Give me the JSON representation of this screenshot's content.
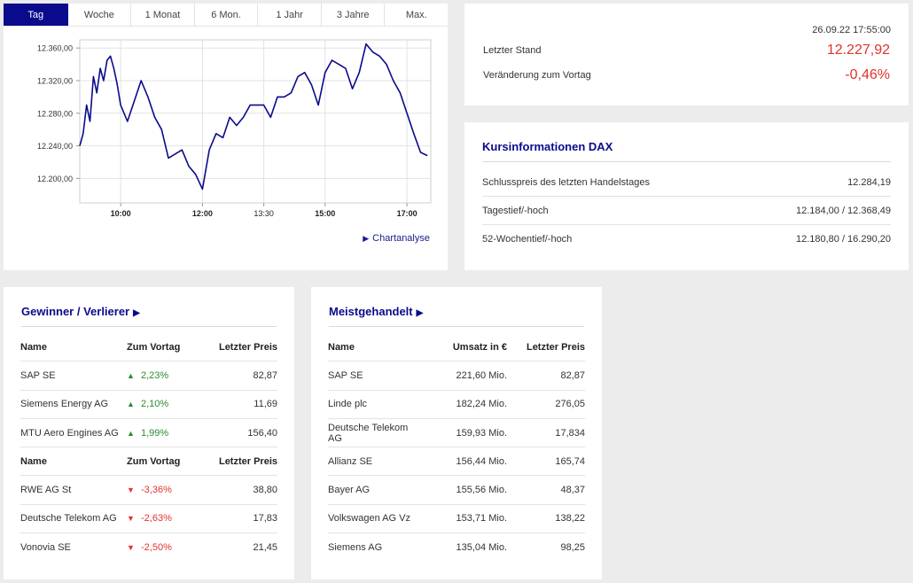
{
  "tabs": [
    "Tag",
    "Woche",
    "1 Monat",
    "6 Mon.",
    "1 Jahr",
    "3 Jahre",
    "Max."
  ],
  "active_tab": "Tag",
  "chart_link": "Chartanalyse",
  "quote": {
    "timestamp": "26.09.22 17:55:00",
    "last_label": "Letzter Stand",
    "last_value": "12.227,92",
    "change_label": "Veränderung zum Vortag",
    "change_value": "-0,46%"
  },
  "info": {
    "title": "Kursinformationen DAX",
    "rows": [
      {
        "label": "Schlusspreis des letzten Handelstages",
        "value": "12.284,19"
      },
      {
        "label": "Tagestief/-hoch",
        "value": "12.184,00 / 12.368,49"
      },
      {
        "label": "52-Wochentief/-hoch",
        "value": "12.180,80 / 16.290,20"
      }
    ]
  },
  "gainers_losers": {
    "title": "Gewinner / Verlierer",
    "headers": [
      "Name",
      "Zum Vortag",
      "Letzter Preis"
    ],
    "gainers": [
      {
        "name": "SAP SE",
        "change": "2,23%",
        "price": "82,87"
      },
      {
        "name": "Siemens Energy AG",
        "change": "2,10%",
        "price": "11,69"
      },
      {
        "name": "MTU Aero Engines AG",
        "change": "1,99%",
        "price": "156,40"
      }
    ],
    "losers": [
      {
        "name": "RWE AG St",
        "change": "-3,36%",
        "price": "38,80"
      },
      {
        "name": "Deutsche Telekom AG",
        "change": "-2,63%",
        "price": "17,83"
      },
      {
        "name": "Vonovia SE",
        "change": "-2,50%",
        "price": "21,45"
      }
    ]
  },
  "most_traded": {
    "title": "Meistgehandelt",
    "headers": [
      "Name",
      "Umsatz in €",
      "Letzter Preis"
    ],
    "rows": [
      {
        "name": "SAP SE",
        "volume": "221,60 Mio.",
        "price": "82,87"
      },
      {
        "name": "Linde plc",
        "volume": "182,24 Mio.",
        "price": "276,05"
      },
      {
        "name": "Deutsche Telekom AG",
        "volume": "159,93 Mio.",
        "price": "17,834"
      },
      {
        "name": "Allianz SE",
        "volume": "156,44 Mio.",
        "price": "165,74"
      },
      {
        "name": "Bayer AG",
        "volume": "155,56 Mio.",
        "price": "48,37"
      },
      {
        "name": "Volkswagen AG Vz",
        "volume": "153,71 Mio.",
        "price": "138,22"
      },
      {
        "name": "Siemens AG",
        "volume": "135,04 Mio.",
        "price": "98,25"
      }
    ]
  },
  "colors": {
    "accent": "#0a0a8c",
    "up": "#2e8b2e",
    "down": "#e1322b"
  },
  "chart_data": {
    "type": "line",
    "y_tick_labels": [
      "12.360,00",
      "12.320,00",
      "12.280,00",
      "12.240,00",
      "12.200,00"
    ],
    "y_ticks": [
      12360,
      12320,
      12280,
      12240,
      12200
    ],
    "x_tick_labels": [
      "10:00",
      "12:00",
      "13:30",
      "15:00",
      "17:00"
    ],
    "x_ticks": [
      "10:00",
      "12:00",
      "13:30",
      "15:00",
      "17:00"
    ],
    "ylim": [
      12170,
      12370
    ],
    "xlim": [
      "09:00",
      "17:35"
    ],
    "grid": true,
    "series": [
      {
        "x": [
          "09:00",
          "09:05",
          "09:10",
          "09:15",
          "09:20",
          "09:25",
          "09:30",
          "09:35",
          "09:40",
          "09:45",
          "09:50",
          "09:55",
          "10:00",
          "10:10",
          "10:20",
          "10:30",
          "10:40",
          "10:50",
          "11:00",
          "11:10",
          "11:20",
          "11:30",
          "11:40",
          "11:50",
          "12:00",
          "12:10",
          "12:20",
          "12:30",
          "12:40",
          "12:50",
          "13:00",
          "13:10",
          "13:20",
          "13:30",
          "13:40",
          "13:50",
          "14:00",
          "14:10",
          "14:20",
          "14:30",
          "14:40",
          "14:50",
          "15:00",
          "15:10",
          "15:20",
          "15:30",
          "15:40",
          "15:50",
          "16:00",
          "16:10",
          "16:20",
          "16:30",
          "16:40",
          "16:50",
          "17:00",
          "17:10",
          "17:20",
          "17:30"
        ],
        "values": [
          12240,
          12255,
          12290,
          12270,
          12325,
          12305,
          12335,
          12320,
          12345,
          12350,
          12335,
          12315,
          12290,
          12270,
          12295,
          12320,
          12300,
          12275,
          12260,
          12225,
          12230,
          12235,
          12215,
          12205,
          12187,
          12235,
          12255,
          12250,
          12275,
          12265,
          12275,
          12290,
          12290,
          12290,
          12275,
          12300,
          12300,
          12305,
          12325,
          12330,
          12315,
          12290,
          12330,
          12345,
          12340,
          12335,
          12310,
          12330,
          12365,
          12355,
          12350,
          12340,
          12320,
          12305,
          12280,
          12255,
          12232,
          12228
        ]
      }
    ]
  }
}
